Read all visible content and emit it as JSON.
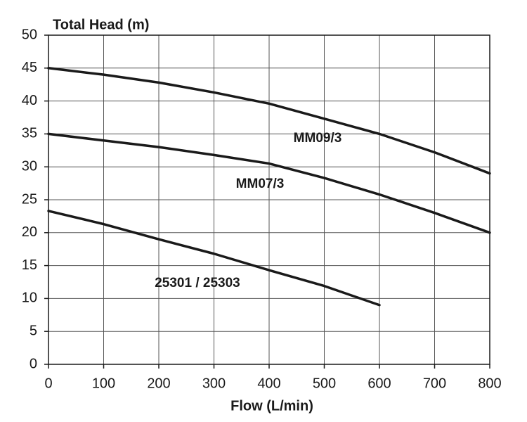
{
  "chart_data": {
    "type": "line",
    "title": "Total Head (m)",
    "x_label": "Flow (L/min)",
    "series": [
      {
        "name": "MM09/3",
        "color": "#1a1a1a",
        "x": [
          0,
          100,
          200,
          300,
          400,
          500,
          600,
          700,
          800
        ],
        "values": [
          45,
          44,
          42.8,
          41.3,
          39.6,
          37.3,
          35,
          32.2,
          29
        ]
      },
      {
        "name": "MM07/3",
        "color": "#1a1a1a",
        "x": [
          0,
          100,
          200,
          300,
          400,
          500,
          600,
          700,
          800
        ],
        "values": [
          35,
          34,
          33,
          31.8,
          30.5,
          28.3,
          25.8,
          23,
          20
        ]
      },
      {
        "name": "25301 / 25303",
        "color": "#1a1a1a",
        "x": [
          0,
          100,
          200,
          300,
          400,
          500,
          600
        ],
        "values": [
          23.3,
          21.3,
          19,
          16.8,
          14.3,
          11.9,
          9
        ]
      }
    ],
    "xlim": [
      0,
      800
    ],
    "xticks": [
      0,
      100,
      200,
      300,
      400,
      500,
      600,
      700,
      800
    ],
    "ylim": [
      0,
      50
    ],
    "yticks": [
      0,
      5,
      10,
      15,
      20,
      25,
      30,
      35,
      40,
      45,
      50
    ],
    "grid": true
  }
}
